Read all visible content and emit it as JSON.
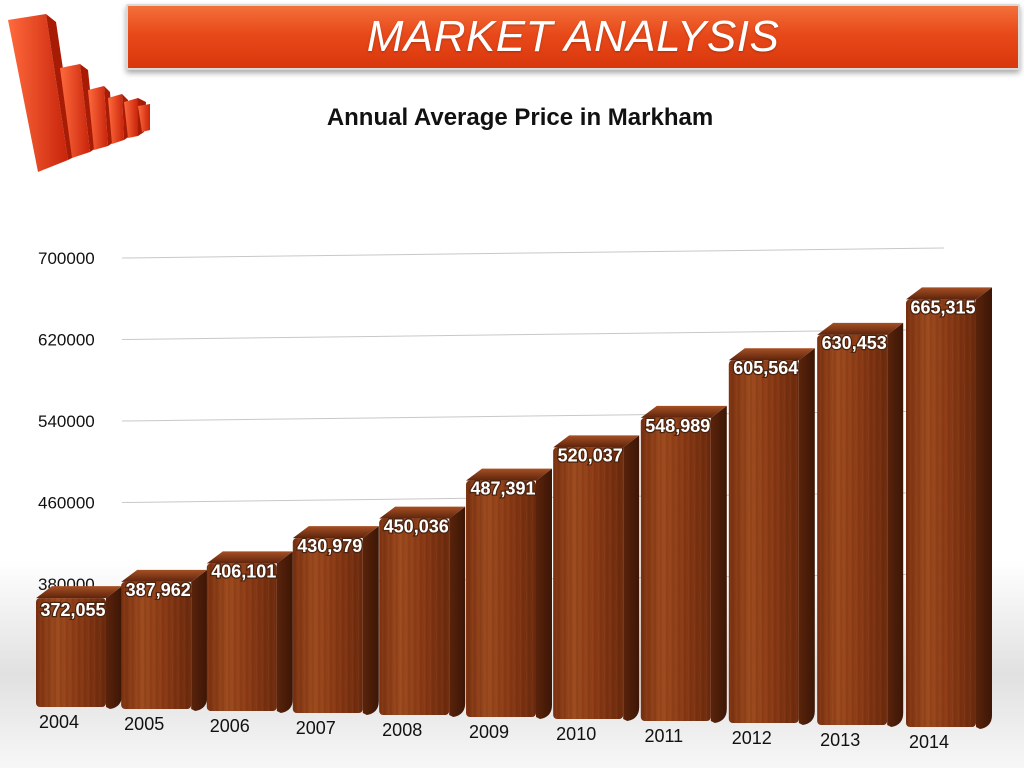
{
  "header": {
    "title": "MARKET ANALYSIS"
  },
  "colors": {
    "banner": "#e8491a",
    "bar_front": "#8a3a15",
    "bar_dark": "#4a1e0a",
    "bar_top": "#6e2c10",
    "logo_red": "#e83a1c"
  },
  "chart_data": {
    "type": "bar",
    "title": "Annual Average Price in Markham",
    "xlabel": "",
    "ylabel": "",
    "categories": [
      "2004",
      "2005",
      "2006",
      "2007",
      "2008",
      "2009",
      "2010",
      "2011",
      "2012",
      "2013",
      "2014"
    ],
    "values": [
      372055,
      387962,
      406101,
      430979,
      450036,
      487391,
      520037,
      548989,
      605564,
      630453,
      665315
    ],
    "data_labels": [
      "372,055",
      "387,962",
      "406,101",
      "430,979",
      "450,036",
      "487,391",
      "520,037",
      "548,989",
      "605,564",
      "630,453",
      "665,315"
    ],
    "yticks": [
      380000,
      460000,
      540000,
      620000,
      700000
    ],
    "ytick_labels": [
      "380000",
      "460000",
      "540000",
      "620000",
      "700000"
    ],
    "ylim": [
      300000,
      700000
    ],
    "grid": true,
    "legend": "none"
  }
}
